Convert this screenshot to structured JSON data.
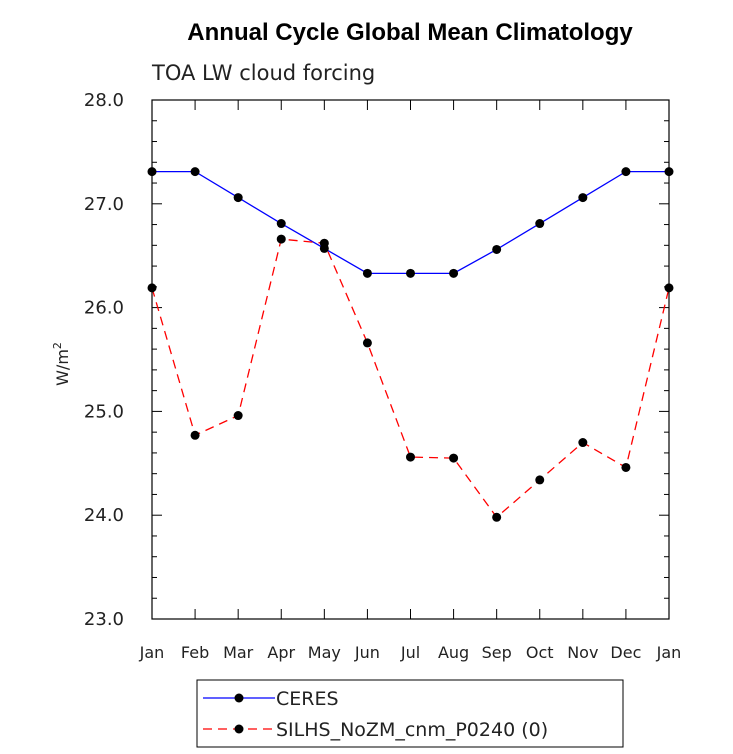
{
  "chart_data": {
    "type": "line",
    "title": "Annual Cycle Global Mean Climatology",
    "subtitle": "TOA LW cloud forcing",
    "ylabel": "W/m",
    "ylabel_sup": "2",
    "xlabel": "",
    "ylim": [
      23.0,
      28.0
    ],
    "yticks": [
      "23.0",
      "24.0",
      "25.0",
      "26.0",
      "27.0",
      "28.0"
    ],
    "categories": [
      "Jan",
      "Feb",
      "Mar",
      "Apr",
      "May",
      "Jun",
      "Jul",
      "Aug",
      "Sep",
      "Oct",
      "Nov",
      "Dec",
      "Jan"
    ],
    "series": [
      {
        "name": "CERES",
        "color": "#0000ff",
        "style": "solid",
        "values": [
          27.31,
          27.31,
          27.06,
          26.81,
          26.57,
          26.33,
          26.33,
          26.33,
          26.56,
          26.81,
          27.06,
          27.31,
          27.31
        ]
      },
      {
        "name": "SILHS_NoZM_cnm_P0240 (0)",
        "color": "#ff0000",
        "style": "dashed",
        "values": [
          26.19,
          24.77,
          24.96,
          26.66,
          26.62,
          25.66,
          24.56,
          24.55,
          23.98,
          24.34,
          24.7,
          24.46,
          26.19
        ]
      }
    ]
  }
}
